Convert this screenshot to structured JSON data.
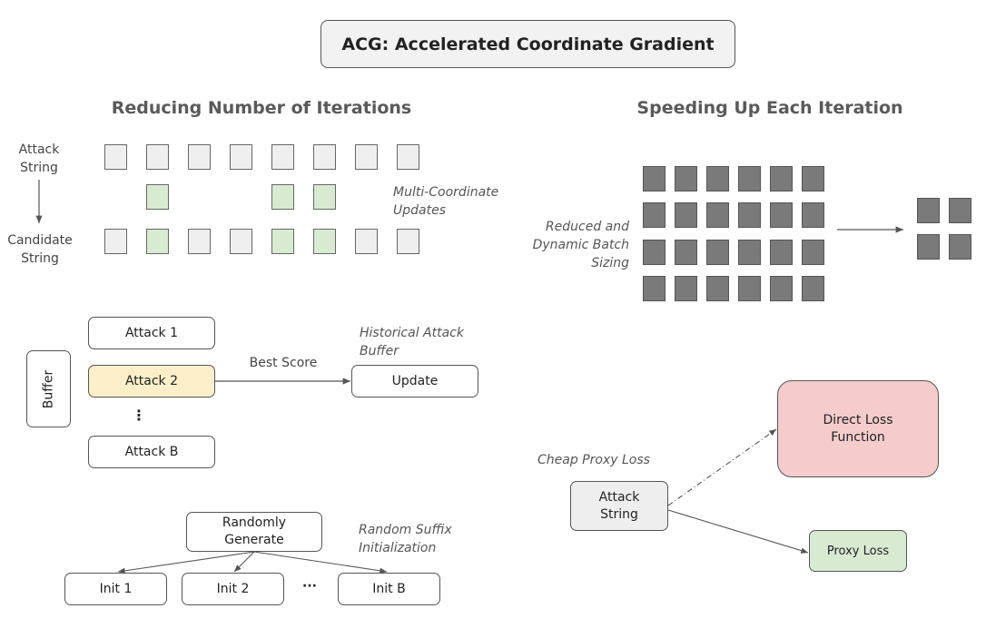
{
  "title": "ACG: Accelerated Coordinate Gradient",
  "left_section": {
    "heading": "Reducing Number of Iterations",
    "attack_string_label": "Attack String",
    "candidate_string_label": "Candidate String",
    "multi_coordinate_label": "Multi-Coordinate Updates",
    "token_count": 8,
    "updated_positions": [
      1,
      4,
      5
    ],
    "buffer": {
      "label": "Buffer",
      "attacks": [
        "Attack 1",
        "Attack 2",
        "Attack B"
      ],
      "ellipsis": "⋮",
      "best_score_label": "Best Score",
      "update_label": "Update",
      "historical_label": "Historical Attack Buffer"
    },
    "init": {
      "random_label": "Randomly Generate",
      "suffix_label": "Random Suffix Initialization",
      "inits": [
        "Init 1",
        "Init 2",
        "Init B"
      ],
      "ellipsis": "···"
    }
  },
  "right_section": {
    "heading": "Speeding Up Each Iteration",
    "batch_label": "Reduced and Dynamic Batch Sizing",
    "batch_grid": {
      "rows": 4,
      "cols": 6
    },
    "reduced_grid": {
      "rows": 2,
      "cols": 2
    },
    "cheap_proxy_label": "Cheap Proxy Loss",
    "attack_string": "Attack String",
    "direct_loss": "Direct Loss Function",
    "proxy_loss": "Proxy Loss"
  },
  "colors": {
    "highlight_green": "#d9ead3",
    "highlight_yellow": "#fcefc9",
    "direct_loss_pink": "#f4cccc",
    "token_gray": "#efefef",
    "batch_dark": "#7a7a7a"
  }
}
